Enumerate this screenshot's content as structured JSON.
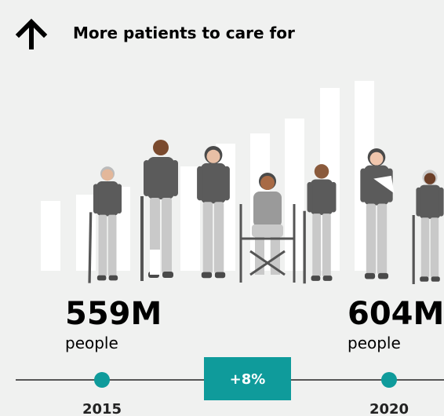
{
  "header": {
    "title": "More patients to care for"
  },
  "start": {
    "value": "559M",
    "unit": "people",
    "year": "2015"
  },
  "end": {
    "value": "604M",
    "unit": "people",
    "year": "2020"
  },
  "change": "+8%"
}
